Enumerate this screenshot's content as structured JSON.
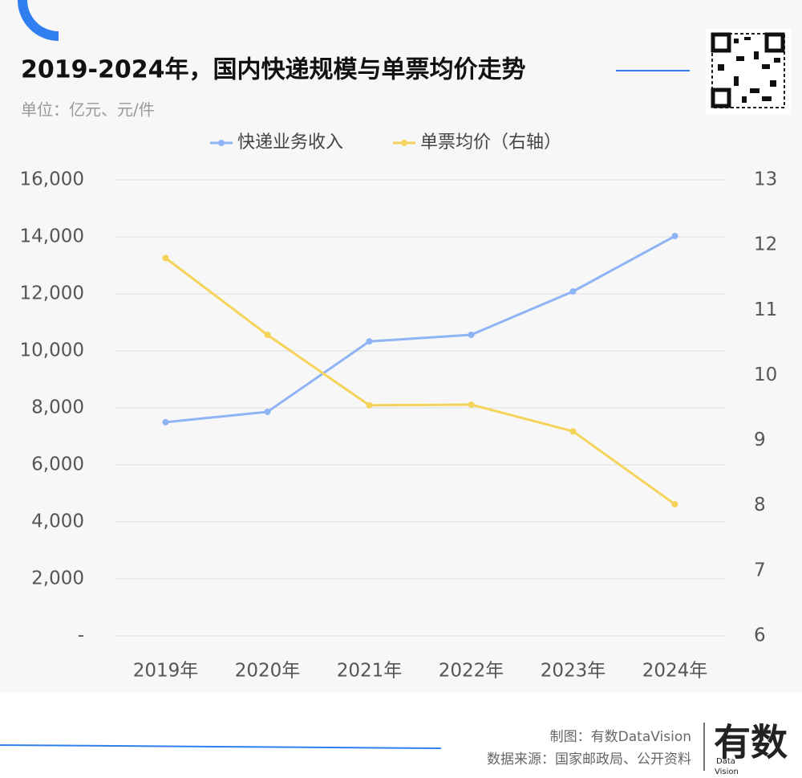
{
  "title": "2019-2024年，国内快递规模与单票均价走势",
  "unit": "单位：亿元、元/件",
  "chart_data": {
    "type": "line",
    "categories": [
      "2019年",
      "2020年",
      "2021年",
      "2022年",
      "2023年",
      "2024年"
    ],
    "series": [
      {
        "name": "快递业务收入",
        "color": "#8fb4f5",
        "values": [
          7498,
          7860,
          10332,
          10563,
          12085,
          14028
        ]
      },
      {
        "name": "单票均价（右轴）",
        "color": "#f5d35a",
        "axis": "y2",
        "values": [
          11.8,
          10.62,
          9.54,
          9.55,
          9.14,
          8.02
        ]
      }
    ],
    "ylim": [
      0,
      16000
    ],
    "yticks": [
      {
        "value": 0,
        "label": "-"
      },
      {
        "value": 2000,
        "label": "2,000"
      },
      {
        "value": 4000,
        "label": "4,000"
      },
      {
        "value": 6000,
        "label": "6,000"
      },
      {
        "value": 8000,
        "label": "8,000"
      },
      {
        "value": 10000,
        "label": "10,000"
      },
      {
        "value": 12000,
        "label": "12,000"
      },
      {
        "value": 14000,
        "label": "14,000"
      },
      {
        "value": 16000,
        "label": "16,000"
      }
    ],
    "y2lim": [
      6,
      13
    ],
    "y2ticks": [
      6,
      7,
      8,
      9,
      10,
      11,
      12,
      13
    ],
    "grid": true,
    "legend": "top"
  },
  "footer": {
    "credit": "制图：有数DataVision",
    "source": "数据来源：国家邮政局、公开资料",
    "logo": "有数",
    "logo_sub1": "Data",
    "logo_sub2": "Vision"
  }
}
